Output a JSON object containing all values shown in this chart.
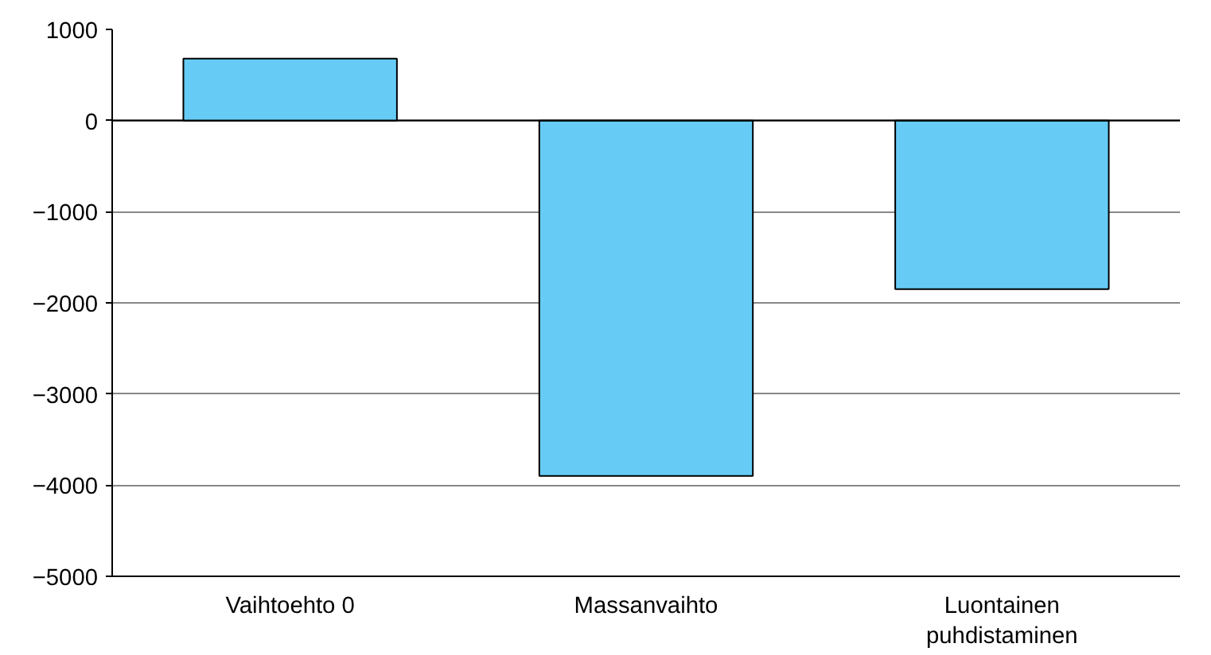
{
  "chart_data": {
    "type": "bar",
    "categories": [
      "Vaihtoehto 0",
      "Massanvaihto",
      "Luontainen puhdistaminen"
    ],
    "values": [
      680,
      -3900,
      -1850
    ],
    "color": "#66ccf5",
    "ylim": [
      -5000,
      1000
    ],
    "yticks": [
      -5000,
      -4000,
      -3000,
      -2000,
      -1000,
      0,
      1000
    ],
    "grid": "y"
  }
}
